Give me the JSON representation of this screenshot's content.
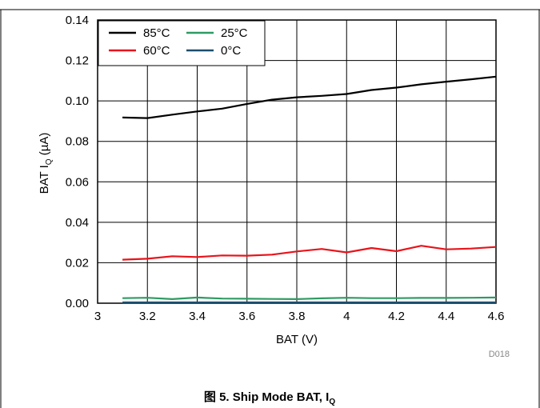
{
  "figure_code": "D018",
  "caption": {
    "prefix": "图 5. Ship Mode BAT, I",
    "sub": "Q"
  },
  "chart_data": {
    "type": "line",
    "title": "",
    "xlabel": "BAT (V)",
    "ylabel_main": "BAT I",
    "ylabel_sub": "Q",
    "ylabel_unit": " (µA)",
    "xlim": [
      3,
      4.6
    ],
    "ylim": [
      0,
      0.14
    ],
    "xticks": [
      3,
      3.2,
      3.4,
      3.6,
      3.8,
      4,
      4.2,
      4.4,
      4.6
    ],
    "xtick_labels": [
      "3",
      "3.2",
      "3.4",
      "3.6",
      "3.8",
      "4",
      "4.2",
      "4.4",
      "4.6"
    ],
    "yticks": [
      0,
      0.02,
      0.04,
      0.06,
      0.08,
      0.1,
      0.12,
      0.14
    ],
    "ytick_labels": [
      "0.00",
      "0.02",
      "0.04",
      "0.06",
      "0.08",
      "0.10",
      "0.12",
      "0.14"
    ],
    "grid": true,
    "legend_position": "top-left",
    "x": [
      3.1,
      3.2,
      3.3,
      3.4,
      3.5,
      3.6,
      3.7,
      3.8,
      3.9,
      4.0,
      4.1,
      4.2,
      4.3,
      4.4,
      4.5,
      4.6
    ],
    "series": [
      {
        "name": "85°C",
        "color": "#000000",
        "values": [
          0.0918,
          0.0915,
          0.0932,
          0.0948,
          0.0962,
          0.0985,
          0.1006,
          0.1018,
          0.1025,
          0.1034,
          0.1054,
          0.1066,
          0.1082,
          0.1095,
          0.1107,
          0.112
        ]
      },
      {
        "name": "25°C",
        "color": "#2e9b63",
        "values": [
          0.0025,
          0.0027,
          0.002,
          0.0028,
          0.0023,
          0.0022,
          0.0021,
          0.002,
          0.0024,
          0.0027,
          0.0025,
          0.0025,
          0.0026,
          0.0026,
          0.0027,
          0.0028
        ]
      },
      {
        "name": "60°C",
        "color": "#e8141b",
        "values": [
          0.0215,
          0.022,
          0.0232,
          0.0228,
          0.0236,
          0.0235,
          0.024,
          0.0256,
          0.0268,
          0.0251,
          0.0273,
          0.0257,
          0.0284,
          0.0266,
          0.027,
          0.0278
        ]
      },
      {
        "name": "0°C",
        "color": "#1c4e6e",
        "values": [
          0.0004,
          0.0004,
          0.0004,
          0.0004,
          0.0004,
          0.0004,
          0.0004,
          0.0004,
          0.0004,
          0.0004,
          0.0004,
          0.0004,
          0.0004,
          0.0004,
          0.0004,
          0.0004
        ]
      }
    ]
  }
}
